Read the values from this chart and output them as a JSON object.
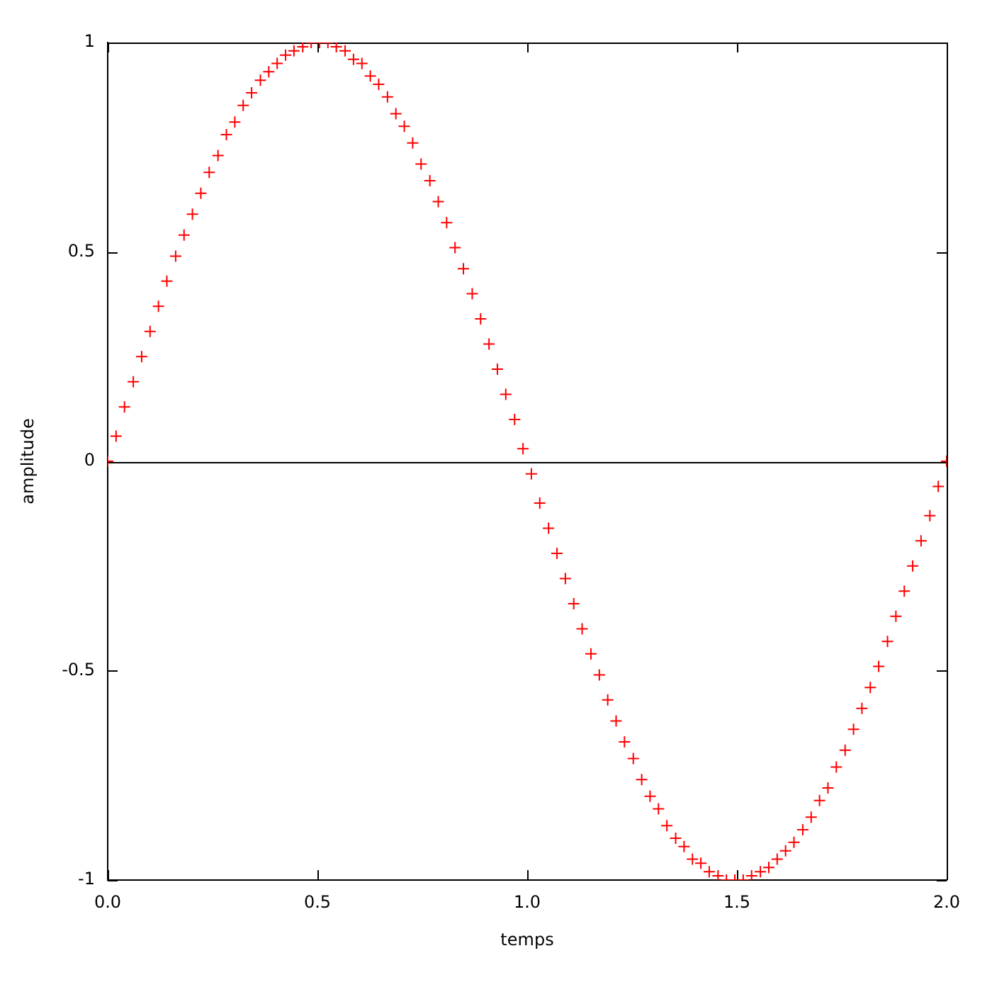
{
  "chart_data": {
    "type": "scatter",
    "xlabel": "temps",
    "ylabel": "amplitude",
    "x": [
      0,
      0.02,
      0.04,
      0.061,
      0.081,
      0.101,
      0.121,
      0.141,
      0.162,
      0.182,
      0.202,
      0.222,
      0.242,
      0.263,
      0.283,
      0.303,
      0.323,
      0.343,
      0.364,
      0.384,
      0.404,
      0.424,
      0.444,
      0.465,
      0.485,
      0.505,
      0.525,
      0.545,
      0.566,
      0.586,
      0.606,
      0.626,
      0.646,
      0.667,
      0.687,
      0.707,
      0.727,
      0.747,
      0.768,
      0.788,
      0.808,
      0.828,
      0.848,
      0.869,
      0.889,
      0.909,
      0.929,
      0.949,
      0.97,
      0.99,
      1.01,
      1.03,
      1.051,
      1.071,
      1.091,
      1.111,
      1.131,
      1.152,
      1.172,
      1.192,
      1.212,
      1.232,
      1.253,
      1.273,
      1.293,
      1.313,
      1.333,
      1.354,
      1.374,
      1.394,
      1.414,
      1.434,
      1.455,
      1.475,
      1.495,
      1.515,
      1.535,
      1.556,
      1.576,
      1.596,
      1.616,
      1.636,
      1.657,
      1.677,
      1.697,
      1.717,
      1.737,
      1.758,
      1.778,
      1.798,
      1.818,
      1.838,
      1.859,
      1.879,
      1.899,
      1.919,
      1.939,
      1.96,
      1.98,
      2
    ],
    "values": [
      0,
      0.06,
      0.13,
      0.19,
      0.25,
      0.31,
      0.37,
      0.43,
      0.49,
      0.54,
      0.59,
      0.64,
      0.69,
      0.73,
      0.78,
      0.81,
      0.85,
      0.88,
      0.91,
      0.93,
      0.95,
      0.97,
      0.98,
      0.99,
      1.0,
      1.0,
      1.0,
      0.99,
      0.98,
      0.96,
      0.95,
      0.92,
      0.9,
      0.87,
      0.83,
      0.8,
      0.76,
      0.71,
      0.67,
      0.62,
      0.57,
      0.51,
      0.46,
      0.4,
      0.34,
      0.28,
      0.22,
      0.16,
      0.1,
      0.03,
      -0.03,
      -0.1,
      -0.16,
      -0.22,
      -0.28,
      -0.34,
      -0.4,
      -0.46,
      -0.51,
      -0.57,
      -0.62,
      -0.67,
      -0.71,
      -0.76,
      -0.8,
      -0.83,
      -0.87,
      -0.9,
      -0.92,
      -0.95,
      -0.96,
      -0.98,
      -0.99,
      -1.0,
      -1.0,
      -1.0,
      -0.99,
      -0.98,
      -0.97,
      -0.95,
      -0.93,
      -0.91,
      -0.88,
      -0.85,
      -0.81,
      -0.78,
      -0.73,
      -0.69,
      -0.64,
      -0.59,
      -0.54,
      -0.49,
      -0.43,
      -0.37,
      -0.31,
      -0.25,
      -0.19,
      -0.13,
      -0.06,
      0
    ],
    "color": "#ff0000",
    "marker": "cross",
    "xlim": [
      0,
      2
    ],
    "ylim": [
      -1,
      1
    ],
    "xticks": [
      {
        "value": 0,
        "label": "0.0"
      },
      0.5,
      {
        "value": 1,
        "label": "1.0"
      },
      1.5,
      {
        "value": 2,
        "label": "2.0"
      }
    ],
    "yticks": [
      -1,
      -0.5,
      0,
      0.5,
      1
    ],
    "ref_lines": [
      {
        "axis": "y",
        "value": 0,
        "color": "#000000"
      }
    ]
  }
}
